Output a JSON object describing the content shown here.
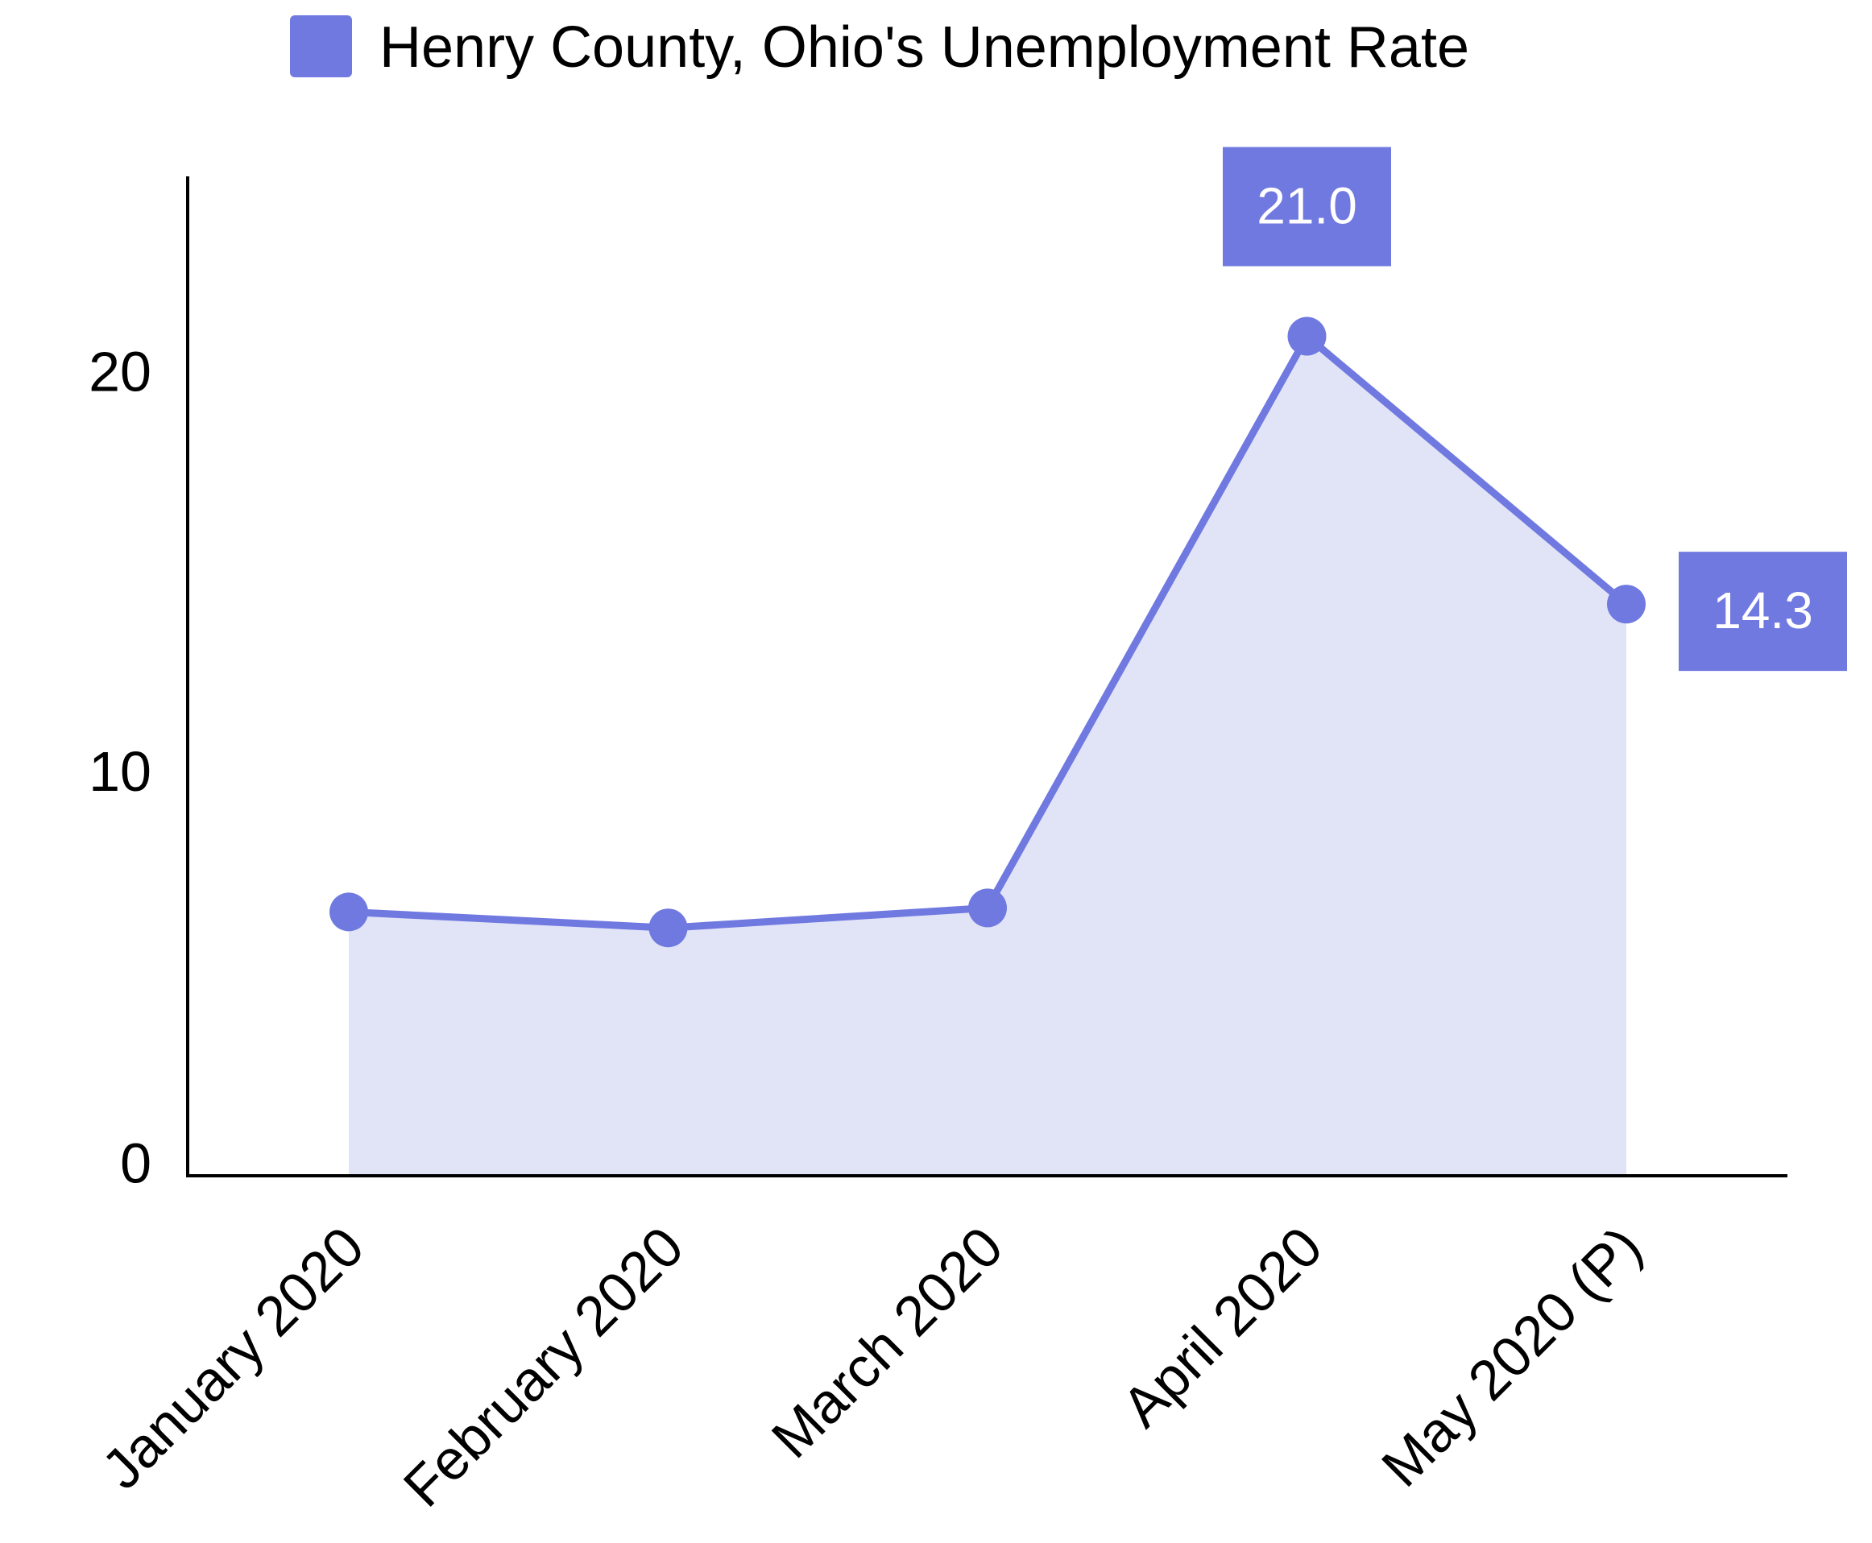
{
  "chart_data": {
    "type": "line",
    "categories": [
      "January 2020",
      "February 2020",
      "March 2020",
      "April 2020",
      "May 2020 (P)"
    ],
    "series": [
      {
        "name": "Henry County, Ohio's Unemployment Rate",
        "color": "#7079e0",
        "values": [
          6.6,
          6.2,
          6.7,
          21.0,
          14.3
        ],
        "value_labels": [
          null,
          null,
          null,
          "21.0",
          "14.3"
        ]
      }
    ],
    "area_fill": "#e1e4f7",
    "ylim": [
      0,
      25
    ],
    "yticks": [
      0,
      10,
      20
    ],
    "grid": false,
    "legend": "top"
  }
}
